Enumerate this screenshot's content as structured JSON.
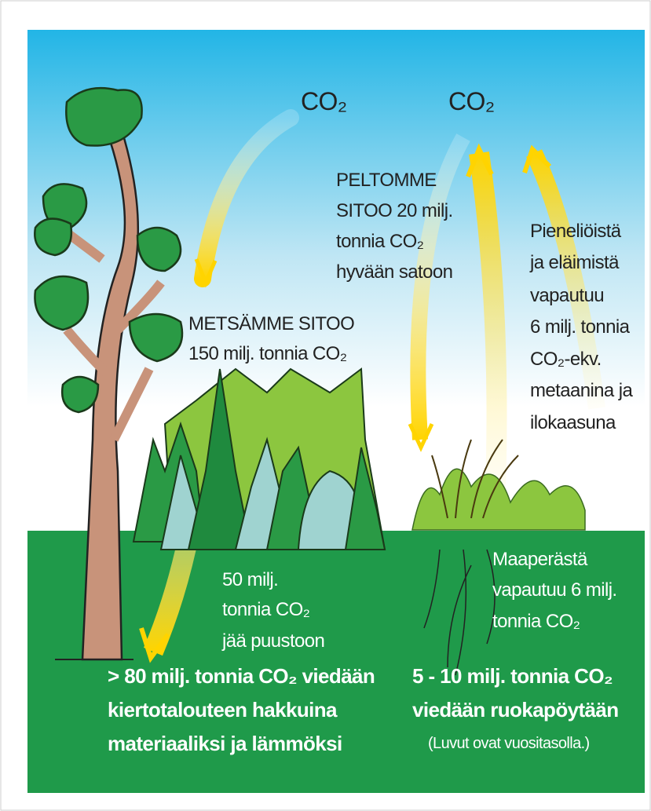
{
  "sky_labels": [
    "CO₂",
    "CO₂"
  ],
  "field_binds": [
    "PELTOMME",
    "SITOO 20 milj.",
    "tonnia CO₂",
    "hyvään satoon"
  ],
  "forest_binds": [
    "METSÄMME SITOO",
    "150 milj. tonnia CO₂"
  ],
  "organism_emissions": [
    "Pieneliöistä",
    "ja eläimistä",
    "vapautuu",
    "6 milj. tonnia",
    "CO₂-ekv.",
    "metaanina ja",
    "ilokaasuna"
  ],
  "tree_storage": [
    "50 milj.",
    "tonnia CO₂",
    "jää puustoon"
  ],
  "soil_release": [
    "Maaperästä",
    "vapautuu 6 milj.",
    "tonnia CO₂"
  ],
  "harvest": [
    "> 80 milj. tonnia CO₂ viedään",
    "kiertotalouteen hakkuina",
    "materiaaliksi ja lämmöksi"
  ],
  "food": [
    "5 - 10 milj. tonnia CO₂",
    "viedään ruokapöytään"
  ],
  "note": "(Luvut ovat vuositasolla.)"
}
